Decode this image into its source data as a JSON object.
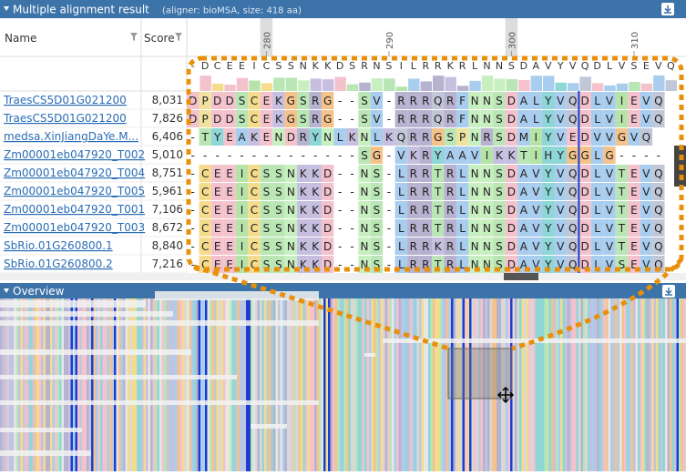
{
  "header": {
    "title": "Multiple alignment result",
    "subtitle": "(aligner: bioMSA, size: 418 aa)"
  },
  "columns": [
    "Name",
    "Score"
  ],
  "ruler": [
    "280",
    "290",
    "300",
    "310"
  ],
  "consensus": "-DCEEICSSNKKDSRNSILRRKRLNNSDAVYVQDLVSEVQ",
  "rows": [
    {
      "name": "TraesCS5D01G021200",
      "score": "8,031",
      "residues": "DPDDSCEKGSRG--SV-RRRQRFNNSDALYVQDLVIEVQ"
    },
    {
      "name": "TraesCS5D01G021200",
      "score": "7,826",
      "residues": "DPDDSCEKGSRG--SV-RRRQRFNNSDALYVQDLVIEVQ"
    },
    {
      "name": "medsa.XinJiangDaYe.M...",
      "score": "6,406",
      "residues": "-TYEAKENDRYNLKNLKQRRGSPNRSDMIYVEDVVGVQ"
    },
    {
      "name": "Zm00001eb047920_T002",
      "score": "5,010",
      "residues": "--------------SG-VKRYAAVIKKTIHYGGLG----"
    },
    {
      "name": "Zm00001eb047920_T004",
      "score": "8,751",
      "residues": "-CEEICSSNKKD--NS-LRRTRLNNSDAVYVQDLVTEVQ"
    },
    {
      "name": "Zm00001eb047920_T005",
      "score": "5,961",
      "residues": "-CEEICSSNKKD--NS-LRRTRLNNSDAVYVQDLVTEVQ"
    },
    {
      "name": "Zm00001eb047920_T001",
      "score": "7,106",
      "residues": "-CEEICSSNKKD--NS-LRRTRLNNSDAVYVQDLVTEVQ"
    },
    {
      "name": "Zm00001eb047920_T003",
      "score": "8,672",
      "residues": "-CEEICSSNKKD--NS-LRRTRLNNSDAVYVQDLVTEVQ"
    },
    {
      "name": "SbRio.01G260800.1",
      "score": "8,840",
      "residues": "-CEEICSSNKKD--NS-LRRKRLNNSDAVYVQDLVTEVQ"
    },
    {
      "name": "SbRio.01G260800.2",
      "score": "7,216",
      "residues": "-CEEICSSNKKD--NS-LRRTRLNNSDAVYVQDLVSEVQ"
    }
  ],
  "overview": {
    "title": "Overview"
  }
}
